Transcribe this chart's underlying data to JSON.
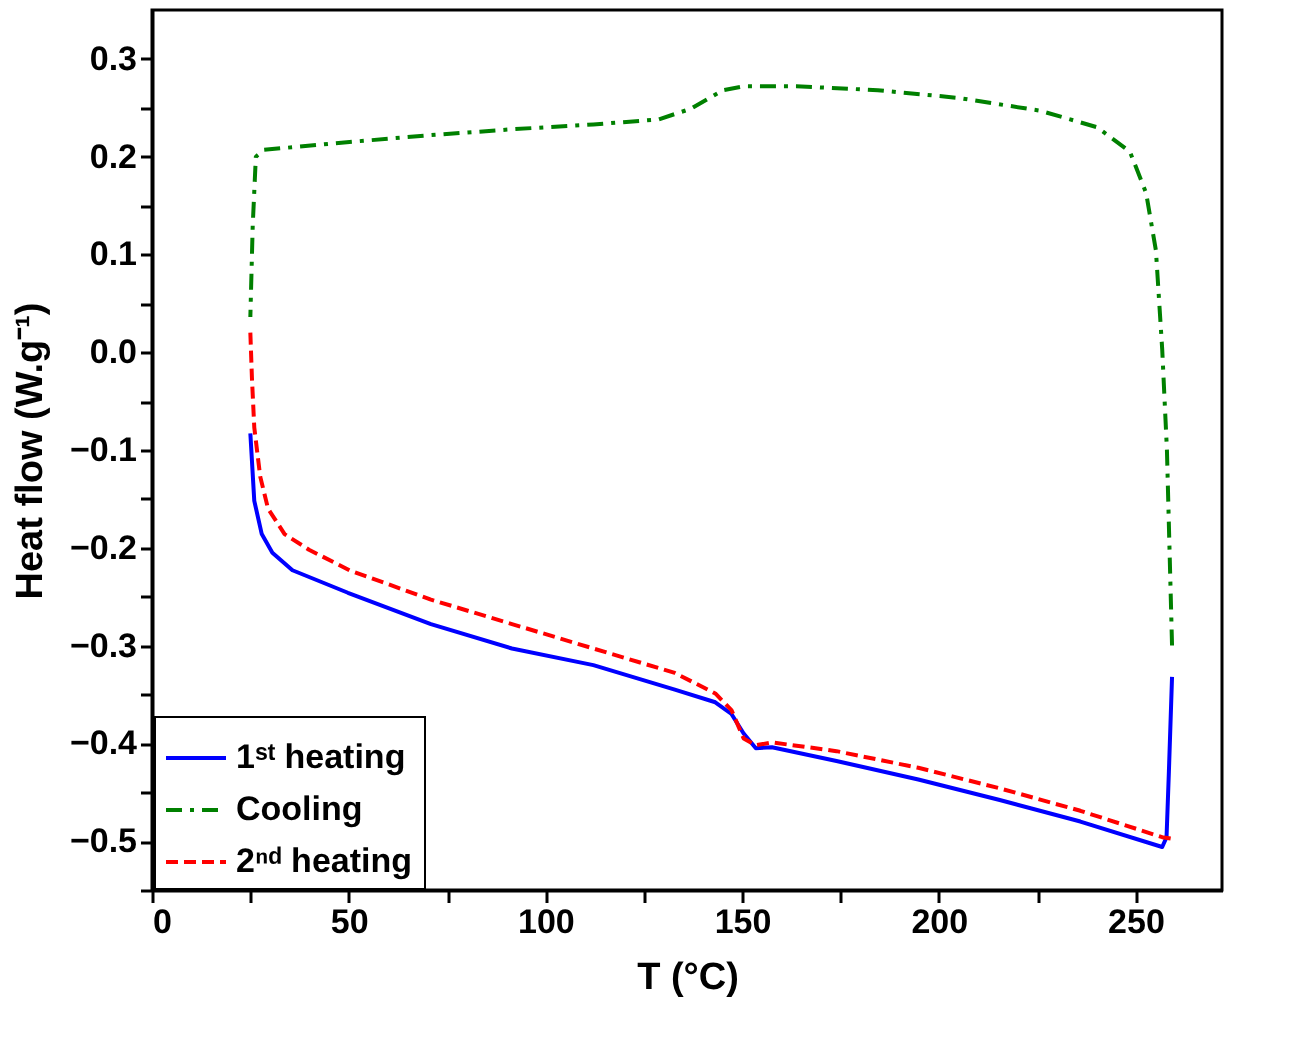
{
  "chart_data": {
    "type": "line",
    "xlabel": "T (°C)",
    "ylabel": "Heat flow (W.g⁻¹)",
    "xlim": [
      0,
      272
    ],
    "ylim": [
      -0.55,
      0.35
    ],
    "xticks": [
      0,
      {
        "value": 25,
        "label": null
      },
      50,
      {
        "value": 75,
        "label": null
      },
      100,
      {
        "value": 125,
        "label": null
      },
      150,
      {
        "value": 175,
        "label": null
      },
      200,
      {
        "value": 225,
        "label": null
      },
      250
    ],
    "yticks": [
      {
        "value": -0.55,
        "label": null
      },
      -0.5,
      {
        "value": -0.45,
        "label": null
      },
      -0.4,
      {
        "value": -0.35,
        "label": null
      },
      -0.3,
      {
        "value": -0.25,
        "label": null
      },
      -0.2,
      {
        "value": -0.15,
        "label": null
      },
      -0.1,
      {
        "value": -0.05,
        "label": null
      },
      {
        "value": 0,
        "label": "0.0"
      },
      {
        "value": 0.05,
        "label": null
      },
      0.1,
      {
        "value": 0.15,
        "label": null
      },
      0.2,
      {
        "value": 0.25,
        "label": null
      },
      0.3
    ],
    "grid": false,
    "legend": "bottom left",
    "marker": "none",
    "series": [
      {
        "name": "1ˢᵗ heating",
        "color": "#0000ff",
        "line_style": "solid",
        "x": [
          25,
          26,
          27.9,
          30.6,
          35.7,
          49.8,
          70.9,
          91.5,
          112.2,
          132.9,
          143.2,
          147.3,
          150.4,
          153.5,
          157.6,
          174,
          194.8,
          215.5,
          236,
          256.8,
          257.9,
          258.5,
          259.3
        ],
        "values": [
          -0.083,
          -0.152,
          -0.186,
          -0.205,
          -0.223,
          -0.246,
          -0.278,
          -0.303,
          -0.32,
          -0.345,
          -0.358,
          -0.37,
          -0.39,
          -0.405,
          -0.404,
          -0.418,
          -0.437,
          -0.458,
          -0.48,
          -0.506,
          -0.496,
          -0.429,
          -0.332
        ]
      },
      {
        "name": "Cooling",
        "color": "#008000",
        "line_style": "dashdot",
        "x": [
          259.3,
          258,
          256.8,
          255.2,
          252.7,
          248.6,
          240.3,
          225.8,
          205.2,
          184.5,
          163.8,
          150.4,
          145.2,
          137,
          128.7,
          112.2,
          91.5,
          70.9,
          50.2,
          28.5,
          26.4,
          25.6,
          25
        ],
        "values": [
          -0.3,
          -0.1,
          0.003,
          0.104,
          0.163,
          0.205,
          0.23,
          0.247,
          0.26,
          0.268,
          0.272,
          0.272,
          0.268,
          0.249,
          0.238,
          0.233,
          0.228,
          0.222,
          0.215,
          0.207,
          0.2,
          0.129,
          0.036
        ]
      },
      {
        "name": "2ⁿᵈ heating",
        "color": "#ff0000",
        "line_style": "dashed",
        "x": [
          25,
          25.4,
          26,
          27.5,
          29.5,
          33.7,
          39.9,
          50.2,
          70.9,
          91.5,
          112.2,
          132.9,
          143.2,
          147.3,
          150.4,
          153.5,
          157.6,
          174,
          194.8,
          215.5,
          236,
          256.8,
          260
        ],
        "values": [
          0.02,
          -0.026,
          -0.077,
          -0.127,
          -0.16,
          -0.186,
          -0.202,
          -0.223,
          -0.253,
          -0.278,
          -0.303,
          -0.328,
          -0.349,
          -0.366,
          -0.395,
          -0.402,
          -0.399,
          -0.408,
          -0.425,
          -0.446,
          -0.469,
          -0.496,
          -0.498
        ]
      }
    ]
  }
}
